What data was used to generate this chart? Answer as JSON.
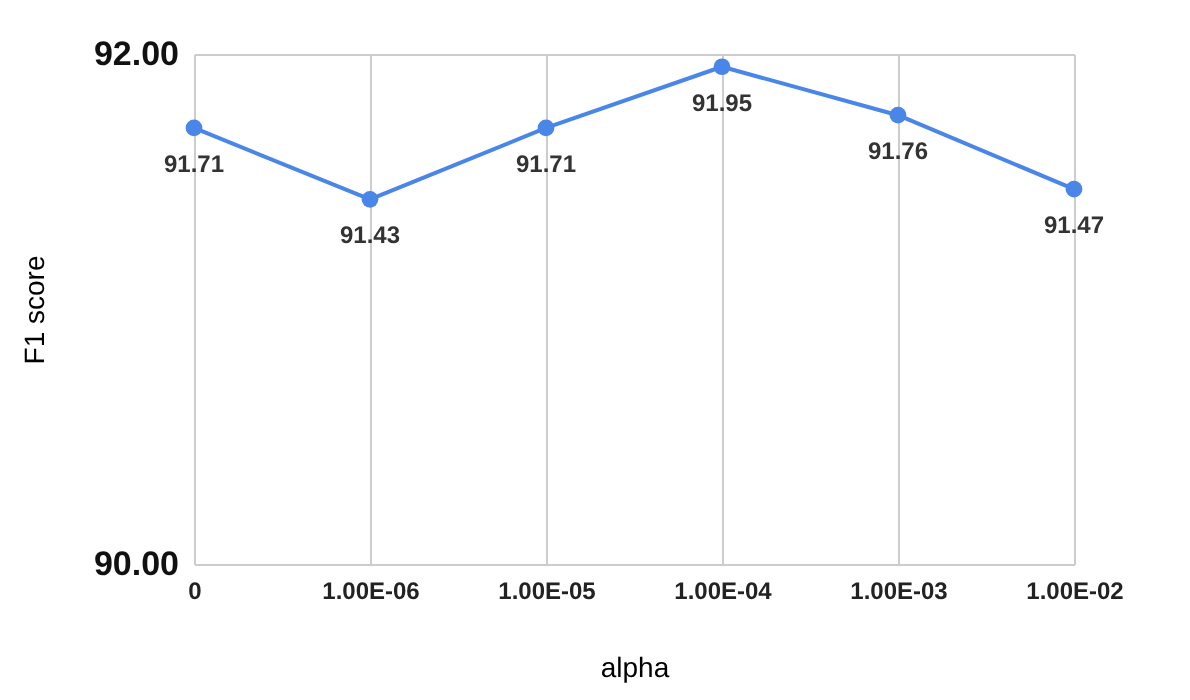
{
  "chart_data": {
    "type": "line",
    "xlabel": "alpha",
    "ylabel": "F1 score",
    "categories": [
      "0",
      "1.00E-06",
      "1.00E-05",
      "1.00E-04",
      "1.00E-03",
      "1.00E-02"
    ],
    "series": [
      {
        "color": "#4a86e8",
        "values": [
          91.71,
          91.43,
          91.71,
          91.95,
          91.76,
          91.47
        ]
      }
    ],
    "ylim": [
      90,
      92
    ],
    "yticks": [
      {
        "value": 90,
        "label": "90.00"
      },
      {
        "value": 92,
        "label": "92.00"
      }
    ],
    "grid": true,
    "marker": "circle",
    "data_labels": true
  }
}
